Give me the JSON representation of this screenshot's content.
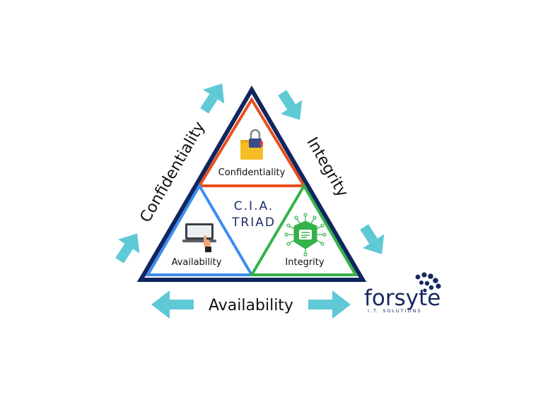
{
  "diagram": {
    "sides": {
      "left": "Confidentiality",
      "right": "Integrity",
      "bottom": "Availability"
    },
    "inner": {
      "top": "Confidentiality",
      "left": "Availability",
      "right": "Integrity"
    },
    "center": {
      "line1": "C.I.A.",
      "line2": "TRIAD"
    },
    "icons": {
      "top": "folder-lock-icon",
      "left": "laptop-touch-icon",
      "right": "circuit-shield-icon"
    },
    "colors": {
      "outer_border": "#10265f",
      "confidentiality": "#ea4e1c",
      "availability": "#3d8df0",
      "integrity": "#35b24a",
      "arrows": "#5fc9d6"
    }
  },
  "logo": {
    "name": "forsyte",
    "tagline": "I.T. SOLUTIONS"
  }
}
